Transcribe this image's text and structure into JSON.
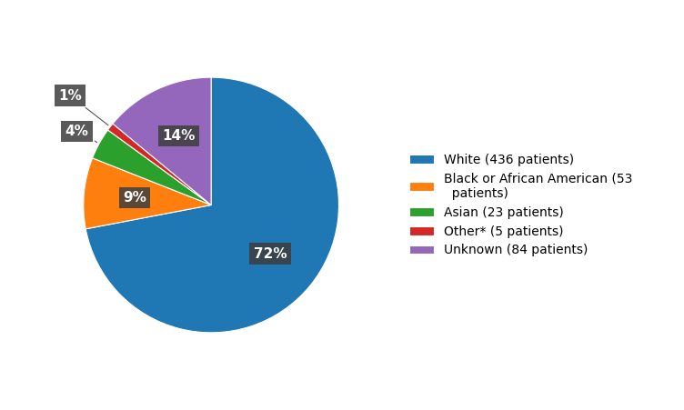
{
  "chart_data": {
    "type": "pie",
    "categories": [
      "White (436 patients)",
      "Black or African American (53\n  patients)",
      "Asian (23 patients)",
      "Other* (5 patients)",
      "Unknown (84 patients)"
    ],
    "values": [
      72,
      9,
      4,
      1,
      14
    ],
    "value_labels": [
      "72%",
      "9%",
      "4%",
      "1%",
      "14%"
    ],
    "data_labels": true,
    "legend": "center left"
  }
}
